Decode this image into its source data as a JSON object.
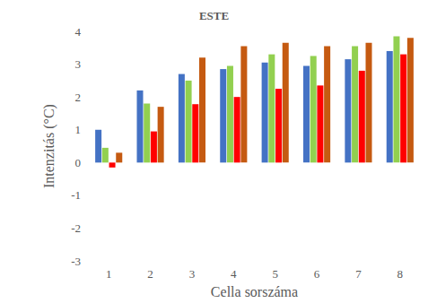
{
  "chart_data": {
    "type": "bar",
    "title": "ESTE",
    "x_label": "Cella sorszáma",
    "y_label": "Intenzitás (°C)",
    "categories": [
      "1",
      "2",
      "3",
      "4",
      "5",
      "6",
      "7",
      "8"
    ],
    "series": [
      {
        "color": "#4472c4",
        "values": [
          1.0,
          2.2,
          2.7,
          2.85,
          3.05,
          2.95,
          3.15,
          3.4
        ]
      },
      {
        "color": "#92d050",
        "values": [
          0.45,
          1.8,
          2.5,
          2.95,
          3.3,
          3.25,
          3.55,
          3.85
        ]
      },
      {
        "color": "#ff0000",
        "values": [
          -0.15,
          0.95,
          1.78,
          2.0,
          2.25,
          2.35,
          2.8,
          3.3
        ]
      },
      {
        "color": "#c55a11",
        "values": [
          0.3,
          1.7,
          3.2,
          3.55,
          3.65,
          3.55,
          3.65,
          3.8
        ]
      }
    ],
    "ylim": [
      -3,
      4
    ],
    "yticks": [
      -3,
      -2,
      -1,
      0,
      1,
      2,
      3,
      4
    ],
    "grid": false
  }
}
